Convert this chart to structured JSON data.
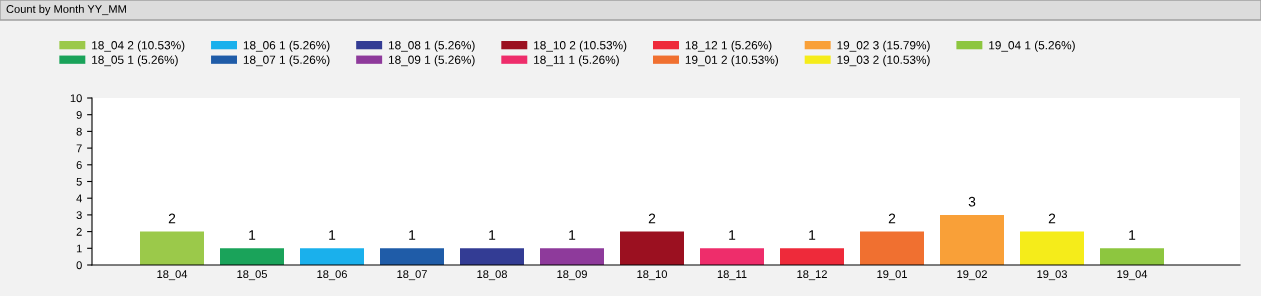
{
  "chart_data": {
    "type": "bar",
    "title": "Count by Month YY_MM",
    "categories": [
      "18_04",
      "18_05",
      "18_06",
      "18_07",
      "18_08",
      "18_09",
      "18_10",
      "18_11",
      "18_12",
      "19_01",
      "19_02",
      "19_03",
      "19_04"
    ],
    "series": [
      {
        "name": "18_04 2 (10.53%)",
        "color": "#9bc94a",
        "values": [
          2,
          null,
          null,
          null,
          null,
          null,
          null,
          null,
          null,
          null,
          null,
          null,
          null
        ]
      },
      {
        "name": "18_05 1 (5.26%)",
        "color": "#1aa35a",
        "values": [
          null,
          1,
          null,
          null,
          null,
          null,
          null,
          null,
          null,
          null,
          null,
          null,
          null
        ]
      },
      {
        "name": "18_06 1 (5.26%)",
        "color": "#1ab0ec",
        "values": [
          null,
          null,
          1,
          null,
          null,
          null,
          null,
          null,
          null,
          null,
          null,
          null,
          null
        ]
      },
      {
        "name": "18_07 1 (5.26%)",
        "color": "#1f5ca8",
        "values": [
          null,
          null,
          null,
          1,
          null,
          null,
          null,
          null,
          null,
          null,
          null,
          null,
          null
        ]
      },
      {
        "name": "18_08 1 (5.26%)",
        "color": "#333c94",
        "values": [
          null,
          null,
          null,
          null,
          1,
          null,
          null,
          null,
          null,
          null,
          null,
          null,
          null
        ]
      },
      {
        "name": "18_09 1 (5.26%)",
        "color": "#8e3a9b",
        "values": [
          null,
          null,
          null,
          null,
          null,
          1,
          null,
          null,
          null,
          null,
          null,
          null,
          null
        ]
      },
      {
        "name": "18_10 2 (10.53%)",
        "color": "#9b1020",
        "values": [
          null,
          null,
          null,
          null,
          null,
          null,
          2,
          null,
          null,
          null,
          null,
          null,
          null
        ]
      },
      {
        "name": "18_11 1 (5.26%)",
        "color": "#ee2d6b",
        "values": [
          null,
          null,
          null,
          null,
          null,
          null,
          null,
          1,
          null,
          null,
          null,
          null,
          null
        ]
      },
      {
        "name": "18_12 1 (5.26%)",
        "color": "#ee2a3a",
        "values": [
          null,
          null,
          null,
          null,
          null,
          null,
          null,
          null,
          1,
          null,
          null,
          null,
          null
        ]
      },
      {
        "name": "19_01 2 (10.53%)",
        "color": "#f07030",
        "values": [
          null,
          null,
          null,
          null,
          null,
          null,
          null,
          null,
          null,
          2,
          null,
          null,
          null
        ]
      },
      {
        "name": "19_02 3 (15.79%)",
        "color": "#f9a038",
        "values": [
          null,
          null,
          null,
          null,
          null,
          null,
          null,
          null,
          null,
          null,
          3,
          null,
          null
        ]
      },
      {
        "name": "19_03 2 (10.53%)",
        "color": "#f5ec1a",
        "values": [
          null,
          null,
          null,
          null,
          null,
          null,
          null,
          null,
          null,
          null,
          null,
          2,
          null
        ]
      },
      {
        "name": "19_04 1 (5.26%)",
        "color": "#8dc63f",
        "values": [
          null,
          null,
          null,
          null,
          null,
          null,
          null,
          null,
          null,
          null,
          null,
          null,
          1
        ]
      }
    ],
    "ylim": [
      0,
      10
    ],
    "yticks": [
      0,
      1,
      2,
      3,
      4,
      5,
      6,
      7,
      8,
      9,
      10
    ],
    "data_labels": true,
    "grid": false,
    "legend": "top"
  }
}
